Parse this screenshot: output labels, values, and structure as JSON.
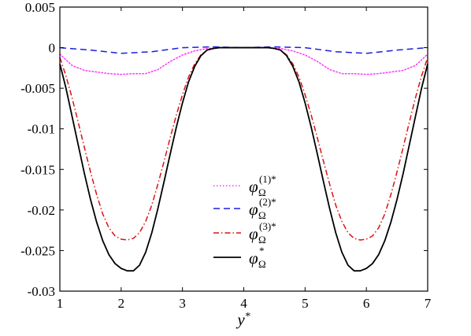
{
  "chart_data": {
    "type": "line",
    "xlabel": "y",
    "xlabel_sup": "*",
    "ylabel": "",
    "xlim": [
      1,
      7
    ],
    "ylim": [
      -0.03,
      0.005
    ],
    "xticks": [
      1,
      2,
      3,
      4,
      5,
      6,
      7
    ],
    "xtick_labels": [
      "1",
      "2",
      "3",
      "4",
      "5",
      "6",
      "7"
    ],
    "yticks": [
      0.005,
      0,
      -0.005,
      -0.01,
      -0.015,
      -0.02,
      -0.025,
      -0.03
    ],
    "ytick_labels": [
      "0.005",
      "0",
      "-0.005",
      "-0.01",
      "-0.015",
      "-0.02",
      "-0.025",
      "-0.03"
    ],
    "grid": false,
    "legend_position": "lower-center",
    "series": [
      {
        "name": "φ_Ω^(1)*",
        "legend_base": "φ",
        "legend_sub": "Ω",
        "legend_sup": "(1)*",
        "color": "#ff33ff",
        "style": "dotted",
        "x": [
          1.0,
          1.2,
          1.4,
          1.6,
          1.8,
          2.0,
          2.2,
          2.4,
          2.6,
          2.8,
          3.0,
          3.2,
          3.4,
          3.6,
          3.8,
          4.0,
          4.2,
          4.4,
          4.6,
          4.8,
          5.0,
          5.2,
          5.4,
          5.6,
          5.8,
          6.0,
          6.2,
          6.4,
          6.6,
          6.8,
          7.0
        ],
        "y": [
          -0.0008,
          -0.0022,
          -0.0028,
          -0.003,
          -0.0032,
          -0.0033,
          -0.0032,
          -0.0032,
          -0.0027,
          -0.0017,
          -0.0009,
          -0.0004,
          -0.0001,
          0.0,
          0.0,
          0.0,
          0.0,
          0.0,
          -0.0001,
          -0.0004,
          -0.0009,
          -0.0017,
          -0.0027,
          -0.0032,
          -0.0032,
          -0.0033,
          -0.0032,
          -0.003,
          -0.0028,
          -0.0022,
          -0.0008
        ]
      },
      {
        "name": "φ_Ω^(2)*",
        "legend_base": "φ",
        "legend_sub": "Ω",
        "legend_sup": "(2)*",
        "color": "#1f1fdf",
        "style": "dashed",
        "x": [
          1.0,
          1.5,
          2.0,
          2.5,
          3.0,
          3.5,
          4.0,
          4.5,
          5.0,
          5.5,
          6.0,
          6.5,
          7.0
        ],
        "y": [
          0.0,
          -0.0003,
          -0.0007,
          -0.0005,
          0.0,
          0.0001,
          0.0,
          0.0001,
          0.0,
          -0.0005,
          -0.0007,
          -0.0003,
          0.0
        ]
      },
      {
        "name": "φ_Ω^(3)*",
        "legend_base": "φ",
        "legend_sub": "Ω",
        "legend_sup": "(3)*",
        "color": "#dd1111",
        "style": "dashdot",
        "x": [
          1.0,
          1.1,
          1.2,
          1.3,
          1.4,
          1.5,
          1.6,
          1.7,
          1.8,
          1.9,
          2.0,
          2.1,
          2.2,
          2.3,
          2.4,
          2.5,
          2.6,
          2.7,
          2.8,
          2.9,
          3.0,
          3.1,
          3.2,
          3.3,
          3.4,
          3.5,
          3.6,
          3.7,
          3.8,
          3.9,
          4.0,
          4.1,
          4.2,
          4.3,
          4.4,
          4.5,
          4.6,
          4.7,
          4.8,
          4.9,
          5.0,
          5.1,
          5.2,
          5.3,
          5.4,
          5.5,
          5.6,
          5.7,
          5.8,
          5.9,
          6.0,
          6.1,
          6.2,
          6.3,
          6.4,
          6.5,
          6.6,
          6.7,
          6.8,
          6.9,
          7.0
        ],
        "y": [
          -0.0012,
          -0.0035,
          -0.0062,
          -0.0092,
          -0.0123,
          -0.0153,
          -0.0181,
          -0.0205,
          -0.0222,
          -0.0232,
          -0.0236,
          -0.0237,
          -0.0235,
          -0.0228,
          -0.0214,
          -0.0194,
          -0.0168,
          -0.014,
          -0.0111,
          -0.0083,
          -0.0058,
          -0.0036,
          -0.002,
          -0.0009,
          -0.0003,
          -0.0001,
          0.0,
          0.0,
          0.0,
          0.0,
          0.0,
          0.0,
          0.0,
          0.0,
          0.0,
          -0.0001,
          -0.0003,
          -0.0009,
          -0.002,
          -0.0036,
          -0.0058,
          -0.0083,
          -0.0111,
          -0.014,
          -0.0168,
          -0.0194,
          -0.0214,
          -0.0228,
          -0.0235,
          -0.0237,
          -0.0236,
          -0.0232,
          -0.0222,
          -0.0205,
          -0.0181,
          -0.0153,
          -0.0123,
          -0.0092,
          -0.0062,
          -0.0035,
          -0.0012
        ]
      },
      {
        "name": "φ_Ω^*",
        "legend_base": "φ",
        "legend_sub": "Ω",
        "legend_sup": "*",
        "color": "#000000",
        "style": "solid",
        "x": [
          1.0,
          1.1,
          1.2,
          1.3,
          1.4,
          1.5,
          1.6,
          1.7,
          1.8,
          1.9,
          2.0,
          2.1,
          2.2,
          2.3,
          2.4,
          2.5,
          2.6,
          2.7,
          2.8,
          2.9,
          3.0,
          3.1,
          3.2,
          3.3,
          3.4,
          3.5,
          3.6,
          3.7,
          3.8,
          3.9,
          4.0,
          4.1,
          4.2,
          4.3,
          4.4,
          4.5,
          4.6,
          4.7,
          4.8,
          4.9,
          5.0,
          5.1,
          5.2,
          5.3,
          5.4,
          5.5,
          5.6,
          5.7,
          5.8,
          5.9,
          6.0,
          6.1,
          6.2,
          6.3,
          6.4,
          6.5,
          6.6,
          6.7,
          6.8,
          6.9,
          7.0
        ],
        "y": [
          -0.002,
          -0.005,
          -0.0085,
          -0.012,
          -0.0155,
          -0.0187,
          -0.0215,
          -0.0238,
          -0.0255,
          -0.0266,
          -0.0272,
          -0.0275,
          -0.0275,
          -0.0268,
          -0.0252,
          -0.0228,
          -0.0198,
          -0.0165,
          -0.0131,
          -0.0098,
          -0.0068,
          -0.0042,
          -0.0023,
          -0.001,
          -0.0003,
          -0.0001,
          0.0,
          0.0,
          0.0,
          0.0,
          0.0,
          0.0,
          0.0,
          0.0,
          0.0,
          -0.0001,
          -0.0003,
          -0.001,
          -0.0023,
          -0.0042,
          -0.0068,
          -0.0098,
          -0.0131,
          -0.0165,
          -0.0198,
          -0.0228,
          -0.0252,
          -0.0268,
          -0.0275,
          -0.0275,
          -0.0272,
          -0.0266,
          -0.0255,
          -0.0238,
          -0.0215,
          -0.0187,
          -0.0155,
          -0.012,
          -0.0085,
          -0.005,
          -0.002
        ]
      }
    ]
  }
}
